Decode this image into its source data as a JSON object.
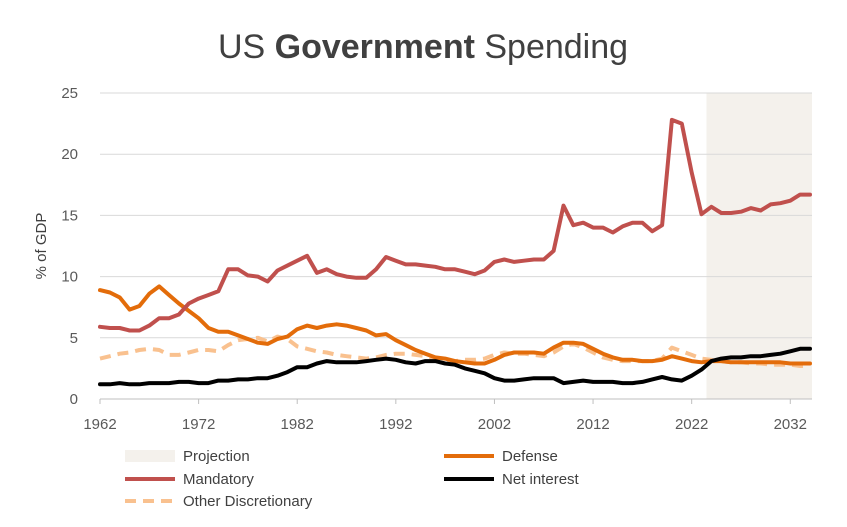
{
  "chart_data": {
    "type": "line",
    "title": {
      "prefix": "US ",
      "bold": "Government",
      "suffix": " Spending"
    },
    "ylabel": "% of GDP",
    "xlabel": "",
    "ylim": [
      0,
      25
    ],
    "xlim": [
      1962,
      2034
    ],
    "yticks": [
      "0",
      "5",
      "10",
      "15",
      "20",
      "25"
    ],
    "xticks": [
      "1962",
      "1972",
      "1982",
      "1992",
      "2002",
      "2012",
      "2022",
      "2032"
    ],
    "grid": "horizontal",
    "projection": {
      "label": "Projection",
      "start": 2023.5,
      "end": 2034,
      "color": "#f4f1ec"
    },
    "legend_position": "bottom",
    "series": [
      {
        "name": "Mandatory",
        "color": "#c0504d",
        "dashed": false,
        "x": [
          1962,
          1963,
          1964,
          1965,
          1966,
          1967,
          1968,
          1969,
          1970,
          1971,
          1972,
          1973,
          1974,
          1975,
          1976,
          1977,
          1978,
          1979,
          1980,
          1981,
          1982,
          1983,
          1984,
          1985,
          1986,
          1987,
          1988,
          1989,
          1990,
          1991,
          1992,
          1993,
          1994,
          1995,
          1996,
          1997,
          1998,
          1999,
          2000,
          2001,
          2002,
          2003,
          2004,
          2005,
          2006,
          2007,
          2008,
          2009,
          2010,
          2011,
          2012,
          2013,
          2014,
          2015,
          2016,
          2017,
          2018,
          2019,
          2020,
          2021,
          2022,
          2023,
          2024,
          2025,
          2026,
          2027,
          2028,
          2029,
          2030,
          2031,
          2032,
          2033,
          2034
        ],
        "values": [
          5.9,
          5.8,
          5.8,
          5.6,
          5.6,
          6.0,
          6.6,
          6.6,
          6.9,
          7.8,
          8.2,
          8.5,
          8.8,
          10.6,
          10.6,
          10.1,
          10.0,
          9.6,
          10.5,
          10.9,
          11.3,
          11.7,
          10.3,
          10.6,
          10.2,
          10.0,
          9.9,
          9.9,
          10.6,
          11.6,
          11.3,
          11.0,
          11.0,
          10.9,
          10.8,
          10.6,
          10.6,
          10.4,
          10.2,
          10.5,
          11.2,
          11.4,
          11.2,
          11.3,
          11.4,
          11.4,
          12.1,
          15.8,
          14.2,
          14.4,
          14.0,
          14.0,
          13.6,
          14.1,
          14.4,
          14.4,
          13.7,
          14.2,
          22.8,
          22.5,
          18.5,
          15.1,
          15.7,
          15.2,
          15.2,
          15.3,
          15.6,
          15.4,
          15.9,
          16.0,
          16.2,
          16.7,
          16.7
        ]
      },
      {
        "name": "Defense",
        "color": "#e36c0a",
        "dashed": false,
        "x": [
          1962,
          1963,
          1964,
          1965,
          1966,
          1967,
          1968,
          1969,
          1970,
          1971,
          1972,
          1973,
          1974,
          1975,
          1976,
          1977,
          1978,
          1979,
          1980,
          1981,
          1982,
          1983,
          1984,
          1985,
          1986,
          1987,
          1988,
          1989,
          1990,
          1991,
          1992,
          1993,
          1994,
          1995,
          1996,
          1997,
          1998,
          1999,
          2000,
          2001,
          2002,
          2003,
          2004,
          2005,
          2006,
          2007,
          2008,
          2009,
          2010,
          2011,
          2012,
          2013,
          2014,
          2015,
          2016,
          2017,
          2018,
          2019,
          2020,
          2021,
          2022,
          2023,
          2024,
          2025,
          2026,
          2027,
          2028,
          2029,
          2030,
          2031,
          2032,
          2033,
          2034
        ],
        "values": [
          8.9,
          8.7,
          8.3,
          7.3,
          7.6,
          8.6,
          9.2,
          8.5,
          7.8,
          7.2,
          6.6,
          5.8,
          5.5,
          5.5,
          5.2,
          4.9,
          4.6,
          4.5,
          4.9,
          5.1,
          5.7,
          6.0,
          5.8,
          6.0,
          6.1,
          6.0,
          5.8,
          5.6,
          5.2,
          5.3,
          4.8,
          4.4,
          4.0,
          3.7,
          3.4,
          3.3,
          3.1,
          3.0,
          2.9,
          2.9,
          3.2,
          3.6,
          3.8,
          3.8,
          3.8,
          3.7,
          4.2,
          4.6,
          4.6,
          4.5,
          4.1,
          3.7,
          3.4,
          3.2,
          3.2,
          3.1,
          3.1,
          3.2,
          3.5,
          3.3,
          3.1,
          3.0,
          3.1,
          3.1,
          3.0,
          3.0,
          3.0,
          3.0,
          3.0,
          3.0,
          2.9,
          2.9,
          2.9
        ]
      },
      {
        "name": "Other Discretionary",
        "color": "#f9c18f",
        "dashed": true,
        "x": [
          1962,
          1963,
          1964,
          1965,
          1966,
          1967,
          1968,
          1969,
          1970,
          1971,
          1972,
          1973,
          1974,
          1975,
          1976,
          1977,
          1978,
          1979,
          1980,
          1981,
          1982,
          1983,
          1984,
          1985,
          1986,
          1987,
          1988,
          1989,
          1990,
          1991,
          1992,
          1993,
          1994,
          1995,
          1996,
          1997,
          1998,
          1999,
          2000,
          2001,
          2002,
          2003,
          2004,
          2005,
          2006,
          2007,
          2008,
          2009,
          2010,
          2011,
          2012,
          2013,
          2014,
          2015,
          2016,
          2017,
          2018,
          2019,
          2020,
          2021,
          2022,
          2023,
          2024,
          2025,
          2026,
          2027,
          2028,
          2029,
          2030,
          2031,
          2032,
          2033,
          2034
        ],
        "values": [
          3.3,
          3.5,
          3.7,
          3.8,
          4.0,
          4.1,
          4.0,
          3.6,
          3.6,
          3.8,
          4.0,
          4.0,
          3.9,
          4.4,
          4.8,
          4.9,
          5.0,
          4.7,
          5.1,
          4.9,
          4.3,
          4.1,
          3.9,
          3.8,
          3.6,
          3.5,
          3.4,
          3.3,
          3.4,
          3.6,
          3.7,
          3.7,
          3.6,
          3.5,
          3.3,
          3.2,
          3.1,
          3.2,
          3.2,
          3.3,
          3.6,
          3.8,
          3.7,
          3.7,
          3.6,
          3.5,
          3.8,
          4.3,
          4.5,
          4.2,
          3.8,
          3.4,
          3.2,
          3.1,
          3.1,
          3.1,
          3.1,
          3.3,
          4.2,
          3.9,
          3.6,
          3.3,
          3.2,
          3.1,
          3.0,
          3.0,
          2.9,
          2.9,
          2.8,
          2.8,
          2.8,
          2.7,
          2.7
        ]
      },
      {
        "name": "Net interest",
        "color": "#000000",
        "dashed": false,
        "x": [
          1962,
          1963,
          1964,
          1965,
          1966,
          1967,
          1968,
          1969,
          1970,
          1971,
          1972,
          1973,
          1974,
          1975,
          1976,
          1977,
          1978,
          1979,
          1980,
          1981,
          1982,
          1983,
          1984,
          1985,
          1986,
          1987,
          1988,
          1989,
          1990,
          1991,
          1992,
          1993,
          1994,
          1995,
          1996,
          1997,
          1998,
          1999,
          2000,
          2001,
          2002,
          2003,
          2004,
          2005,
          2006,
          2007,
          2008,
          2009,
          2010,
          2011,
          2012,
          2013,
          2014,
          2015,
          2016,
          2017,
          2018,
          2019,
          2020,
          2021,
          2022,
          2023,
          2024,
          2025,
          2026,
          2027,
          2028,
          2029,
          2030,
          2031,
          2032,
          2033,
          2034
        ],
        "values": [
          1.2,
          1.2,
          1.3,
          1.2,
          1.2,
          1.3,
          1.3,
          1.3,
          1.4,
          1.4,
          1.3,
          1.3,
          1.5,
          1.5,
          1.6,
          1.6,
          1.7,
          1.7,
          1.9,
          2.2,
          2.6,
          2.6,
          2.9,
          3.1,
          3.0,
          3.0,
          3.0,
          3.1,
          3.2,
          3.3,
          3.2,
          3.0,
          2.9,
          3.1,
          3.1,
          2.9,
          2.8,
          2.5,
          2.3,
          2.1,
          1.7,
          1.5,
          1.5,
          1.6,
          1.7,
          1.7,
          1.7,
          1.3,
          1.4,
          1.5,
          1.4,
          1.4,
          1.4,
          1.3,
          1.3,
          1.4,
          1.6,
          1.8,
          1.6,
          1.5,
          1.9,
          2.4,
          3.1,
          3.3,
          3.4,
          3.4,
          3.5,
          3.5,
          3.6,
          3.7,
          3.9,
          4.1,
          4.1
        ]
      }
    ],
    "legend_items": [
      {
        "label": "Projection",
        "kind": "box",
        "color": "#f4f1ec"
      },
      {
        "label": "Defense",
        "kind": "line",
        "color": "#e36c0a",
        "dashed": false
      },
      {
        "label": "Mandatory",
        "kind": "line",
        "color": "#c0504d",
        "dashed": false
      },
      {
        "label": "Net interest",
        "kind": "line",
        "color": "#000000",
        "dashed": false
      },
      {
        "label": "Other Discretionary",
        "kind": "line",
        "color": "#f9c18f",
        "dashed": true
      }
    ]
  }
}
